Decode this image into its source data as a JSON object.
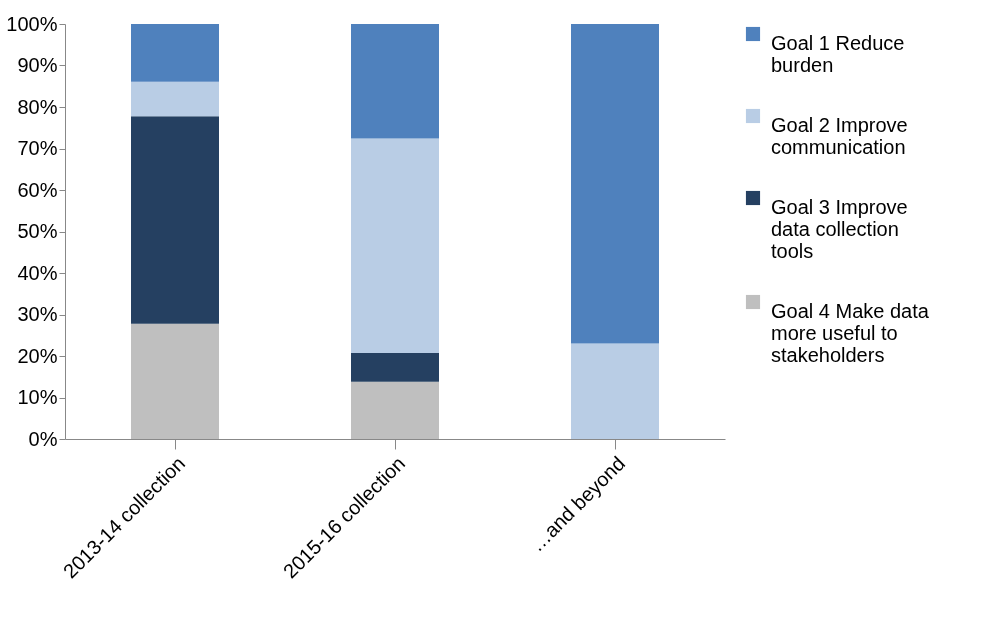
{
  "chart_data": {
    "type": "bar",
    "stacked": true,
    "categories": [
      "2013-14 collection",
      "2015-16 collection",
      "…and beyond"
    ],
    "series": [
      {
        "name": "Goal 4 Make data more useful to stakeholders",
        "color": "#bfbfbf",
        "values": [
          27.8,
          13.8,
          0
        ]
      },
      {
        "name": "Goal 3 Improve data collection tools",
        "color": "#254061",
        "values": [
          50,
          6.9,
          0
        ]
      },
      {
        "name": "Goal 2 Improve communication",
        "color": "#b9cde5",
        "values": [
          8.3,
          51.7,
          23
        ]
      },
      {
        "name": "Goal 1 Reduce burden",
        "color": "#4f81bd",
        "values": [
          13.9,
          27.6,
          77
        ]
      }
    ],
    "ylim": [
      0,
      100
    ],
    "yticks": [
      {
        "value": 0,
        "label": "0%"
      },
      {
        "value": 10,
        "label": "10%"
      },
      {
        "value": 20,
        "label": "20%"
      },
      {
        "value": 30,
        "label": "30%"
      },
      {
        "value": 40,
        "label": "40%"
      },
      {
        "value": 50,
        "label": "50%"
      },
      {
        "value": 60,
        "label": "60%"
      },
      {
        "value": 70,
        "label": "70%"
      },
      {
        "value": 80,
        "label": "80%"
      },
      {
        "value": 90,
        "label": "90%"
      },
      {
        "value": 100,
        "label": "100%"
      }
    ],
    "grid": false,
    "legend": "right"
  }
}
